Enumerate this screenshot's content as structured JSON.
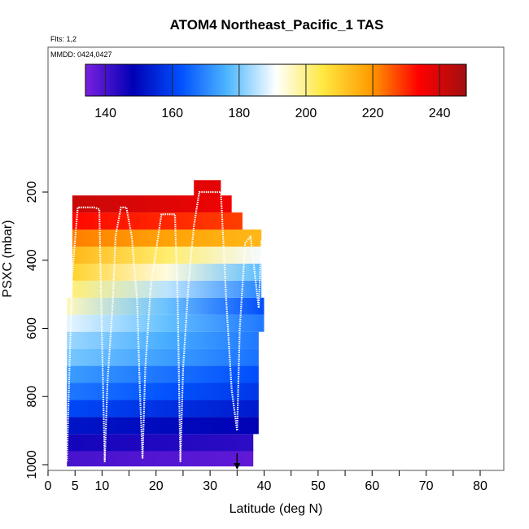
{
  "chart_data": {
    "type": "heatmap",
    "title": "ATOM4 Northeast_Pacific_1 TAS",
    "annotations": {
      "flights": "Flts: 1,2",
      "dates": "MMDD: 0424,0427"
    },
    "xlabel": "Latitude (deg N)",
    "ylabel": "PSXC (mbar)",
    "xlim": [
      0,
      85
    ],
    "ylim": [
      1000,
      100
    ],
    "x_ticks": [
      0,
      5,
      10,
      20,
      30,
      40,
      50,
      60,
      70,
      80
    ],
    "x_minor_ticks": [
      15,
      25,
      35,
      45,
      55,
      65,
      75,
      85
    ],
    "y_ticks": [
      200,
      400,
      600,
      800,
      1000
    ],
    "colorbar": {
      "range": [
        134,
        248
      ],
      "ticks": [
        140,
        160,
        180,
        200,
        220,
        240
      ],
      "colors": [
        "#7a20e0",
        "#0000b4",
        "#0050ff",
        "#50b8ff",
        "#ffffff",
        "#ffe840",
        "#ff9a00",
        "#ff0000",
        "#a01010"
      ]
    },
    "marker_latitude": 35,
    "rows": [
      {
        "p": 980,
        "lat_min": 3.5,
        "lat_max": 38,
        "v_start": 140,
        "v_end": 137
      },
      {
        "p": 935,
        "lat_min": 3.5,
        "lat_max": 38,
        "v_start": 146,
        "v_end": 143
      },
      {
        "p": 885,
        "lat_min": 3.5,
        "lat_max": 39,
        "v_start": 152,
        "v_end": 148
      },
      {
        "p": 835,
        "lat_min": 3.5,
        "lat_max": 39,
        "v_start": 161,
        "v_end": 153
      },
      {
        "p": 785,
        "lat_min": 3.5,
        "lat_max": 39,
        "v_start": 168,
        "v_end": 158
      },
      {
        "p": 735,
        "lat_min": 3.5,
        "lat_max": 39,
        "v_start": 173,
        "v_end": 162
      },
      {
        "p": 685,
        "lat_min": 3.5,
        "lat_max": 39,
        "v_start": 180,
        "v_end": 167
      },
      {
        "p": 635,
        "lat_min": 3.5,
        "lat_max": 39,
        "v_start": 183,
        "v_end": 168
      },
      {
        "p": 585,
        "lat_min": 3.5,
        "lat_max": 40,
        "v_start": 189,
        "v_end": 168
      },
      {
        "p": 535,
        "lat_min": 3.5,
        "lat_max": 40,
        "v_start": 196,
        "v_end": 162
      },
      {
        "p": 485,
        "lat_min": 4.5,
        "lat_max": 39.5,
        "v_start": 201,
        "v_end": 170
      },
      {
        "p": 435,
        "lat_min": 4.5,
        "lat_max": 39.5,
        "v_start": 209,
        "v_end": 178
      },
      {
        "p": 385,
        "lat_min": 4.5,
        "lat_max": 39.5,
        "v_start": 214,
        "v_end": 190
      },
      {
        "p": 335,
        "lat_min": 4.5,
        "lat_max": 39.5,
        "v_start": 222,
        "v_end": 214
      },
      {
        "p": 285,
        "lat_min": 4.5,
        "lat_max": 36,
        "v_start": 233,
        "v_end": 228
      },
      {
        "p": 235,
        "lat_min": 4.5,
        "lat_max": 34,
        "v_start": 242,
        "v_end": 236
      },
      {
        "p": 190,
        "lat_min": 27,
        "lat_max": 32,
        "v_start": 238,
        "v_end": 238
      }
    ],
    "flight_track": {
      "latitude": [
        3.5,
        4,
        4.5,
        5.5,
        7,
        8.5,
        9.5,
        10,
        10.5,
        11,
        12,
        12.5,
        13.5,
        14.5,
        15.5,
        16.5,
        17,
        17.5,
        18,
        19,
        21,
        22,
        23.5,
        24,
        24.5,
        25,
        26,
        27,
        28,
        30,
        32,
        33,
        34,
        35,
        35.5,
        36.5,
        37.5,
        38,
        39,
        39.5
      ],
      "pressure": [
        990,
        700,
        440,
        245,
        245,
        245,
        250,
        640,
        990,
        760,
        520,
        330,
        245,
        245,
        330,
        520,
        780,
        980,
        720,
        480,
        265,
        265,
        265,
        520,
        990,
        720,
        470,
        300,
        200,
        200,
        200,
        520,
        780,
        900,
        600,
        350,
        330,
        400,
        540,
        340
      ]
    }
  }
}
